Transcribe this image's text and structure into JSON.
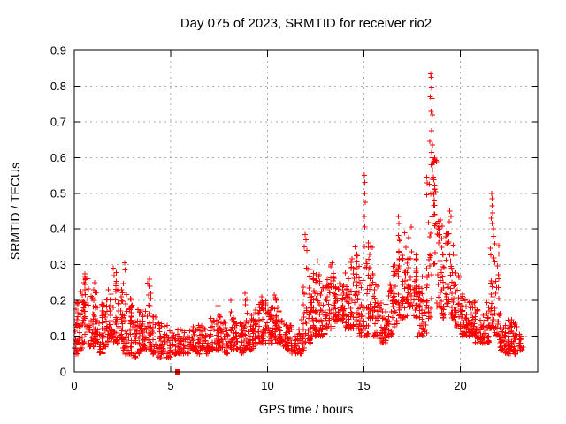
{
  "chart_data": {
    "type": "scatter",
    "title": "Day 075 of 2023, SRMTID for receiver rio2",
    "xlabel": "GPS time / hours",
    "ylabel": "SRMTID / TECUs",
    "xlim": [
      0,
      24
    ],
    "ylim": [
      0,
      0.9
    ],
    "xticks": [
      0,
      5,
      10,
      15,
      20
    ],
    "xtick_labels": [
      "0",
      "5",
      "10",
      "15",
      "20"
    ],
    "yticks": [
      0,
      0.1,
      0.2,
      0.3,
      0.4,
      0.5,
      0.6,
      0.7,
      0.8,
      0.9
    ],
    "ytick_labels": [
      "0",
      "0.1",
      "0.2",
      "0.3",
      "0.4",
      "0.5",
      "0.6",
      "0.7",
      "0.8",
      "0.9"
    ],
    "grid": true,
    "legend": "none",
    "marker": "plus",
    "marker_size_px": 7,
    "colors": {
      "points": "#ff0000",
      "grid": "#a9a9a9",
      "frame": "#000000",
      "text": "#000000",
      "background": "#ffffff"
    },
    "outlier_square": [
      5.34,
      0
    ],
    "seed": 20230075,
    "band_envelope": {
      "description": "Dense scatter band of SRMTID values; bins are [start_hour, y_min, y_max, point_count, bias_high_flag]",
      "bin_width_hours": 0.25,
      "bins": [
        [
          0.0,
          0.05,
          0.2,
          30,
          0
        ],
        [
          0.25,
          0.06,
          0.24,
          30,
          0
        ],
        [
          0.5,
          0.08,
          0.27,
          30,
          0
        ],
        [
          0.75,
          0.07,
          0.22,
          30,
          0
        ],
        [
          1.0,
          0.08,
          0.24,
          30,
          0
        ],
        [
          1.25,
          0.05,
          0.2,
          30,
          0
        ],
        [
          1.5,
          0.07,
          0.21,
          28,
          0
        ],
        [
          1.75,
          0.09,
          0.24,
          28,
          0
        ],
        [
          2.0,
          0.08,
          0.28,
          28,
          0
        ],
        [
          2.25,
          0.09,
          0.23,
          28,
          0
        ],
        [
          2.5,
          0.05,
          0.3,
          30,
          0
        ],
        [
          2.75,
          0.05,
          0.22,
          28,
          0
        ],
        [
          3.0,
          0.04,
          0.15,
          26,
          0
        ],
        [
          3.25,
          0.05,
          0.18,
          26,
          0
        ],
        [
          3.5,
          0.06,
          0.19,
          26,
          0
        ],
        [
          3.75,
          0.05,
          0.25,
          26,
          0
        ],
        [
          4.0,
          0.05,
          0.16,
          22,
          0
        ],
        [
          4.25,
          0.04,
          0.14,
          20,
          0
        ],
        [
          4.5,
          0.05,
          0.15,
          20,
          0
        ],
        [
          4.75,
          0.04,
          0.13,
          20,
          0
        ],
        [
          5.0,
          0.05,
          0.12,
          18,
          0
        ],
        [
          5.25,
          0.05,
          0.12,
          18,
          0
        ],
        [
          5.5,
          0.05,
          0.13,
          18,
          0
        ],
        [
          5.75,
          0.05,
          0.12,
          18,
          0
        ],
        [
          6.0,
          0.06,
          0.13,
          20,
          0
        ],
        [
          6.25,
          0.05,
          0.13,
          20,
          0
        ],
        [
          6.5,
          0.06,
          0.14,
          20,
          0
        ],
        [
          6.75,
          0.05,
          0.13,
          20,
          0
        ],
        [
          7.0,
          0.06,
          0.15,
          22,
          0
        ],
        [
          7.25,
          0.06,
          0.17,
          22,
          0
        ],
        [
          7.5,
          0.06,
          0.16,
          22,
          0
        ],
        [
          7.75,
          0.05,
          0.14,
          22,
          0
        ],
        [
          8.0,
          0.06,
          0.19,
          22,
          0
        ],
        [
          8.25,
          0.06,
          0.15,
          22,
          0
        ],
        [
          8.5,
          0.05,
          0.14,
          22,
          0
        ],
        [
          8.75,
          0.06,
          0.21,
          24,
          0
        ],
        [
          9.0,
          0.06,
          0.16,
          22,
          0
        ],
        [
          9.25,
          0.07,
          0.18,
          22,
          0
        ],
        [
          9.5,
          0.08,
          0.2,
          24,
          0
        ],
        [
          9.75,
          0.08,
          0.2,
          24,
          0
        ],
        [
          10.0,
          0.08,
          0.18,
          24,
          0
        ],
        [
          10.25,
          0.09,
          0.21,
          26,
          0
        ],
        [
          10.5,
          0.08,
          0.18,
          24,
          0
        ],
        [
          10.75,
          0.07,
          0.15,
          22,
          0
        ],
        [
          11.0,
          0.06,
          0.14,
          20,
          0
        ],
        [
          11.25,
          0.05,
          0.12,
          18,
          0
        ],
        [
          11.5,
          0.05,
          0.12,
          18,
          0
        ],
        [
          11.75,
          0.06,
          0.24,
          24,
          0
        ],
        [
          12.0,
          0.08,
          0.33,
          30,
          0
        ],
        [
          12.25,
          0.1,
          0.28,
          30,
          0
        ],
        [
          12.5,
          0.1,
          0.3,
          30,
          0
        ],
        [
          12.75,
          0.1,
          0.24,
          28,
          0
        ],
        [
          13.0,
          0.12,
          0.26,
          28,
          0
        ],
        [
          13.25,
          0.12,
          0.3,
          28,
          0
        ],
        [
          13.5,
          0.14,
          0.26,
          28,
          0
        ],
        [
          13.75,
          0.14,
          0.25,
          28,
          0
        ],
        [
          14.0,
          0.12,
          0.28,
          28,
          0
        ],
        [
          14.25,
          0.12,
          0.32,
          28,
          0
        ],
        [
          14.5,
          0.12,
          0.34,
          28,
          0
        ],
        [
          14.75,
          0.1,
          0.3,
          28,
          0
        ],
        [
          15.0,
          0.1,
          0.38,
          26,
          0
        ],
        [
          15.25,
          0.15,
          0.37,
          26,
          0
        ],
        [
          15.5,
          0.1,
          0.25,
          24,
          0
        ],
        [
          15.75,
          0.08,
          0.2,
          24,
          0
        ],
        [
          16.0,
          0.08,
          0.2,
          24,
          0
        ],
        [
          16.25,
          0.1,
          0.25,
          26,
          0
        ],
        [
          16.5,
          0.12,
          0.3,
          26,
          0
        ],
        [
          16.75,
          0.15,
          0.4,
          26,
          0
        ],
        [
          17.0,
          0.15,
          0.35,
          26,
          0
        ],
        [
          17.25,
          0.18,
          0.4,
          28,
          0
        ],
        [
          17.5,
          0.15,
          0.33,
          26,
          0
        ],
        [
          17.75,
          0.1,
          0.25,
          24,
          0
        ],
        [
          18.0,
          0.1,
          0.3,
          24,
          0
        ],
        [
          18.25,
          0.15,
          0.55,
          28,
          0
        ],
        [
          18.5,
          0.22,
          0.6,
          30,
          1
        ],
        [
          18.75,
          0.18,
          0.45,
          28,
          0
        ],
        [
          19.0,
          0.15,
          0.42,
          26,
          0
        ],
        [
          19.25,
          0.18,
          0.4,
          26,
          0
        ],
        [
          19.5,
          0.15,
          0.38,
          26,
          0
        ],
        [
          19.75,
          0.12,
          0.3,
          24,
          0
        ],
        [
          20.0,
          0.1,
          0.22,
          26,
          0
        ],
        [
          20.25,
          0.1,
          0.22,
          28,
          0
        ],
        [
          20.5,
          0.1,
          0.2,
          28,
          0
        ],
        [
          20.75,
          0.08,
          0.18,
          26,
          0
        ],
        [
          21.0,
          0.08,
          0.16,
          24,
          0
        ],
        [
          21.25,
          0.08,
          0.2,
          24,
          0
        ],
        [
          21.5,
          0.12,
          0.35,
          26,
          0
        ],
        [
          21.75,
          0.1,
          0.4,
          26,
          0
        ],
        [
          22.0,
          0.06,
          0.17,
          28,
          0
        ],
        [
          22.25,
          0.05,
          0.16,
          28,
          0
        ],
        [
          22.5,
          0.05,
          0.15,
          26,
          0
        ],
        [
          22.75,
          0.05,
          0.14,
          24,
          0
        ],
        [
          23.0,
          0.06,
          0.12,
          18,
          0
        ]
      ]
    },
    "spike_points": [
      [
        0.55,
        0.275
      ],
      [
        0.57,
        0.26
      ],
      [
        1.05,
        0.25
      ],
      [
        2.02,
        0.29
      ],
      [
        2.05,
        0.27
      ],
      [
        2.6,
        0.305
      ],
      [
        2.63,
        0.285
      ],
      [
        3.9,
        0.26
      ],
      [
        3.92,
        0.24
      ],
      [
        7.45,
        0.185
      ],
      [
        8.1,
        0.2
      ],
      [
        8.85,
        0.22
      ],
      [
        8.87,
        0.2
      ],
      [
        9.7,
        0.21
      ],
      [
        10.35,
        0.215
      ],
      [
        11.95,
        0.385
      ],
      [
        12.0,
        0.37
      ],
      [
        11.9,
        0.35
      ],
      [
        12.05,
        0.34
      ],
      [
        12.6,
        0.31
      ],
      [
        13.35,
        0.305
      ],
      [
        14.55,
        0.35
      ],
      [
        14.6,
        0.33
      ],
      [
        15.03,
        0.55
      ],
      [
        15.05,
        0.53
      ],
      [
        15.04,
        0.5
      ],
      [
        15.06,
        0.475
      ],
      [
        15.03,
        0.435
      ],
      [
        15.05,
        0.405
      ],
      [
        16.78,
        0.435
      ],
      [
        16.82,
        0.415
      ],
      [
        17.1,
        0.39
      ],
      [
        17.45,
        0.405
      ],
      [
        18.45,
        0.835
      ],
      [
        18.47,
        0.825
      ],
      [
        18.5,
        0.795
      ],
      [
        18.44,
        0.77
      ],
      [
        18.52,
        0.765
      ],
      [
        18.48,
        0.73
      ],
      [
        18.55,
        0.72
      ],
      [
        18.5,
        0.675
      ],
      [
        18.42,
        0.645
      ],
      [
        18.55,
        0.635
      ],
      [
        18.5,
        0.615
      ],
      [
        18.47,
        0.58
      ],
      [
        18.56,
        0.565
      ],
      [
        18.6,
        0.545
      ],
      [
        19.45,
        0.45
      ],
      [
        19.5,
        0.435
      ],
      [
        19.42,
        0.42
      ],
      [
        21.62,
        0.5
      ],
      [
        21.65,
        0.485
      ],
      [
        21.63,
        0.465
      ],
      [
        21.66,
        0.445
      ],
      [
        21.6,
        0.43
      ],
      [
        21.64,
        0.415
      ],
      [
        21.7,
        0.4
      ],
      [
        21.72,
        0.38
      ]
    ]
  }
}
